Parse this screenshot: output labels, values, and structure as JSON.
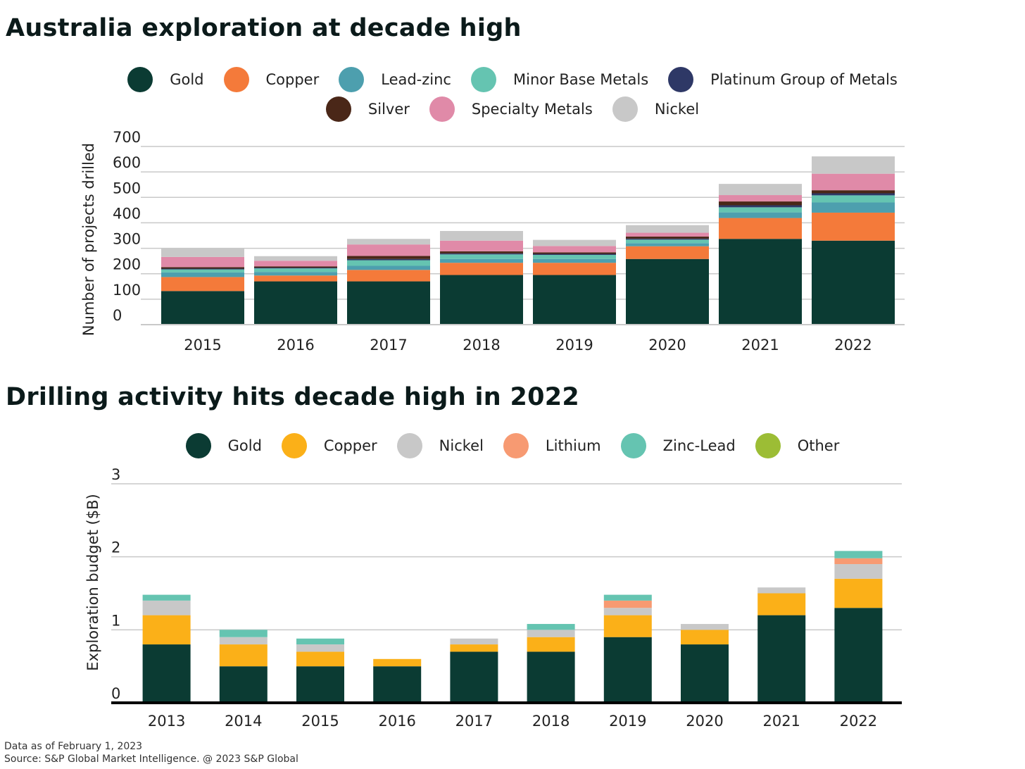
{
  "chart_data": [
    {
      "type": "bar",
      "stacked": true,
      "title": "Australia exploration at decade high",
      "ylabel": "Number of projects drilled",
      "xlabel": "",
      "ylim": [
        0,
        700
      ],
      "yticks": [
        0,
        100,
        200,
        300,
        400,
        500,
        600,
        700
      ],
      "grid": true,
      "legend_position": "top",
      "categories": [
        "2015",
        "2016",
        "2017",
        "2018",
        "2019",
        "2020",
        "2021",
        "2022"
      ],
      "series": [
        {
          "name": "Gold",
          "color": "#0b3b33",
          "values": [
            132,
            170,
            170,
            195,
            195,
            258,
            337,
            330
          ]
        },
        {
          "name": "Copper",
          "color": "#f47a3a",
          "values": [
            55,
            23,
            45,
            48,
            48,
            50,
            82,
            110
          ]
        },
        {
          "name": "Lead-zinc",
          "color": "#4d9fae",
          "values": [
            18,
            14,
            16,
            15,
            15,
            12,
            22,
            40
          ]
        },
        {
          "name": "Minor Base Metals",
          "color": "#65c4b1",
          "values": [
            12,
            14,
            22,
            18,
            16,
            14,
            20,
            28
          ]
        },
        {
          "name": "Platinum Group of Metals",
          "color": "#2e3866",
          "values": [
            3,
            3,
            5,
            4,
            4,
            4,
            8,
            8
          ]
        },
        {
          "name": "Silver",
          "color": "#4a2718",
          "values": [
            6,
            5,
            12,
            8,
            6,
            8,
            15,
            12
          ]
        },
        {
          "name": "Specialty Metals",
          "color": "#e08aa8",
          "values": [
            40,
            22,
            45,
            42,
            25,
            15,
            25,
            65
          ]
        },
        {
          "name": "Nickel",
          "color": "#c8c8c8",
          "values": [
            34,
            18,
            22,
            38,
            24,
            30,
            44,
            68
          ]
        }
      ],
      "legend_rows": [
        [
          0,
          1,
          2,
          3,
          4
        ],
        [
          5,
          6,
          7
        ]
      ]
    },
    {
      "type": "bar",
      "stacked": true,
      "title": "Drilling activity hits decade high in 2022",
      "ylabel": "Exploration budget ($B)",
      "xlabel": "",
      "ylim": [
        0,
        3
      ],
      "yticks": [
        0,
        1,
        2,
        3
      ],
      "grid": true,
      "legend_position": "top",
      "categories": [
        "2013",
        "2014",
        "2015",
        "2016",
        "2017",
        "2018",
        "2019",
        "2020",
        "2021",
        "2022"
      ],
      "series": [
        {
          "name": "Gold",
          "color": "#0b3b33",
          "values": [
            0.8,
            0.5,
            0.5,
            0.5,
            0.7,
            0.7,
            0.9,
            0.8,
            1.2,
            1.3
          ]
        },
        {
          "name": "Copper",
          "color": "#fbb018",
          "values": [
            0.4,
            0.3,
            0.2,
            0.1,
            0.1,
            0.2,
            0.3,
            0.2,
            0.3,
            0.4
          ]
        },
        {
          "name": "Nickel",
          "color": "#c8c8c8",
          "values": [
            0.2,
            0.1,
            0.1,
            0,
            0.08,
            0.1,
            0.1,
            0.08,
            0.08,
            0.2
          ]
        },
        {
          "name": "Lithium",
          "color": "#f79a72",
          "values": [
            0,
            0,
            0,
            0,
            0,
            0,
            0.1,
            0,
            0,
            0.08
          ]
        },
        {
          "name": "Zinc-Lead",
          "color": "#65c4b1",
          "values": [
            0.08,
            0.1,
            0.08,
            0,
            0,
            0.08,
            0.08,
            0,
            0,
            0.1
          ]
        },
        {
          "name": "Other",
          "color": "#9cbd35",
          "values": [
            0,
            0,
            0,
            0,
            0,
            0,
            0,
            0,
            0,
            0
          ]
        }
      ],
      "legend_rows": [
        [
          0,
          1,
          2,
          3,
          4,
          5
        ]
      ]
    }
  ],
  "footnotes": {
    "date": "Data as of February 1, 2023",
    "source": "Source: S&P Global Market Intelligence. @ 2023 S&P Global"
  }
}
